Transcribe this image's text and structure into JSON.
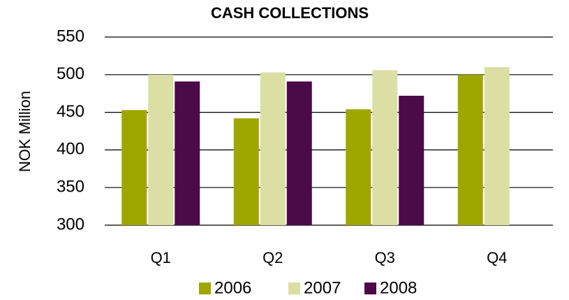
{
  "chart_data": {
    "type": "bar",
    "title": "CASH COLLECTIONS",
    "y_label": "NOK Million",
    "categories": [
      "Q1",
      "Q2",
      "Q3",
      "Q4"
    ],
    "series": [
      {
        "name": "2006",
        "color": "#9ea700",
        "values": [
          453,
          442,
          454,
          500
        ]
      },
      {
        "name": "2007",
        "color": "#dcdfa3",
        "values": [
          500,
          503,
          506,
          510
        ]
      },
      {
        "name": "2008",
        "color": "#4a0b48",
        "values": [
          491,
          491,
          472,
          null
        ]
      }
    ],
    "ylim": [
      300,
      550
    ],
    "yticks": [
      300,
      350,
      400,
      450,
      500,
      550
    ],
    "grid": true,
    "legend": "bottom"
  }
}
